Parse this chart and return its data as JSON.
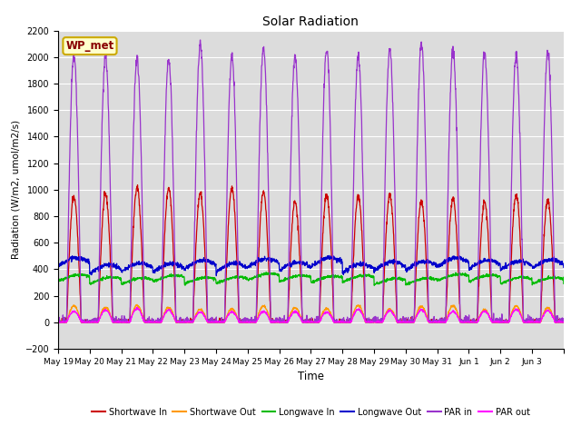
{
  "title": "Solar Radiation",
  "ylabel": "Radiation (W/m2, umol/m2/s)",
  "xlabel": "Time",
  "ylim": [
    -200,
    2200
  ],
  "yticks": [
    -200,
    0,
    200,
    400,
    600,
    800,
    1000,
    1200,
    1400,
    1600,
    1800,
    2000,
    2200
  ],
  "x_tick_labels": [
    "May 19",
    "May 20",
    "May 21",
    "May 22",
    "May 23",
    "May 24",
    "May 25",
    "May 26",
    "May 27",
    "May 28",
    "May 29",
    "May 30",
    "May 31",
    "Jun 1",
    "Jun 2",
    "Jun 3"
  ],
  "n_days": 16,
  "plot_bg_color": "#dcdcdc",
  "fig_bg_color": "#ffffff",
  "legend_entries": [
    "Shortwave In",
    "Shortwave Out",
    "Longwave In",
    "Longwave Out",
    "PAR in",
    "PAR out"
  ],
  "legend_colors": [
    "#cc0000",
    "#ff9900",
    "#00bb00",
    "#0000cc",
    "#9933cc",
    "#ff00ff"
  ],
  "watermark_text": "WP_met",
  "watermark_bg": "#ffffcc",
  "watermark_border": "#ccaa00",
  "grid_color": "#ffffff",
  "linewidth": 0.9
}
